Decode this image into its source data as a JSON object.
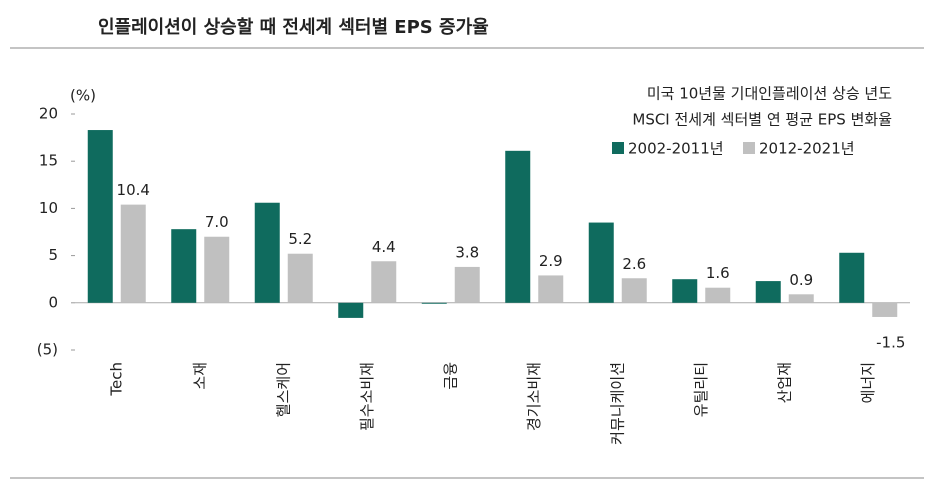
{
  "chart_data": {
    "type": "bar",
    "title": "인플레이션이 상승할 때 전세계 섹터별 EPS 증가율",
    "y_label": "(%)",
    "legend_title": [
      "미국 10년물 기대인플레이션 상승 년도",
      "MSCI 전세계 섹터별 연 평균 EPS 변화율"
    ],
    "categories": [
      "Tech",
      "소재",
      "헬스케어",
      "필수소비재",
      "금융",
      "경기소비재",
      "커뮤니케이션",
      "유틸리티",
      "산업재",
      "에너지"
    ],
    "series": [
      {
        "name": "2002-2011년",
        "color": "#0f6b5e",
        "values": [
          18.3,
          7.8,
          10.6,
          -1.6,
          -0.1,
          16.1,
          8.5,
          2.5,
          2.3,
          5.3
        ]
      },
      {
        "name": "2012-2021년",
        "color": "#c0c0c0",
        "values": [
          10.4,
          7.0,
          5.2,
          4.4,
          3.8,
          2.9,
          2.6,
          1.6,
          0.9,
          -1.5
        ],
        "value_labels": [
          "10.4",
          "7.0",
          "5.2",
          "4.4",
          "3.8",
          "2.9",
          "2.6",
          "1.6",
          "0.9",
          "-1.5"
        ]
      }
    ],
    "ylim": [
      -5,
      20
    ],
    "yticks": [
      {
        "value": -5,
        "label": "(5)"
      },
      0,
      5,
      10,
      15,
      20
    ],
    "legend": "upper right"
  }
}
